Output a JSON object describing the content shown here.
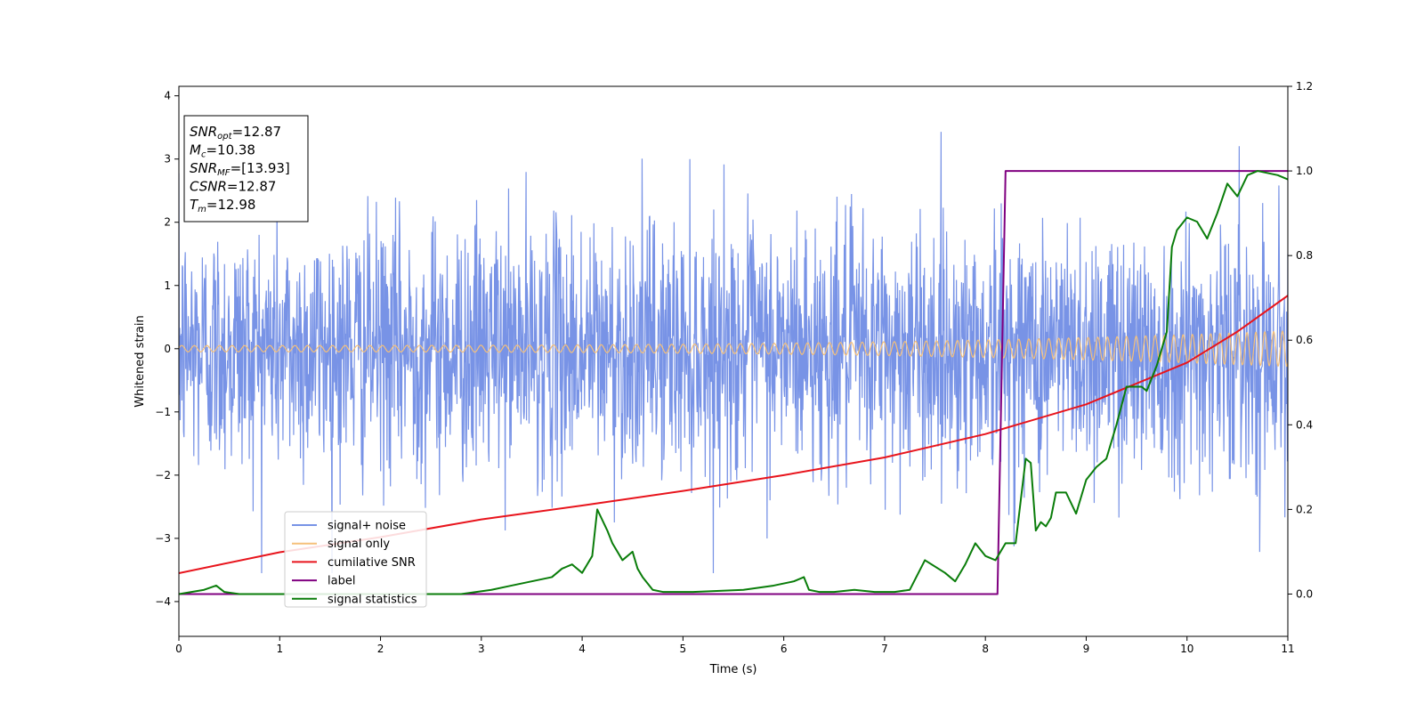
{
  "chart_data": {
    "type": "line",
    "xlabel": "Time (s)",
    "ylabel_left": "Whitened strain",
    "ylabel_right": "",
    "xlim": [
      0,
      11
    ],
    "ylim_left": [
      -4.55,
      4.15
    ],
    "ylim_right": [
      -0.1,
      1.2
    ],
    "xticks": [
      0,
      1,
      2,
      3,
      4,
      5,
      6,
      7,
      8,
      9,
      10,
      11
    ],
    "yticks_left": [
      -4,
      -3,
      -2,
      -1,
      0,
      1,
      2,
      3,
      4
    ],
    "yticks_right": [
      0.0,
      0.2,
      0.4,
      0.6,
      0.8,
      1.0,
      1.2
    ],
    "grid": false,
    "legend_position": "lower-left",
    "info_box": {
      "position": "top-left",
      "lines": [
        {
          "name": "SNR",
          "sub": "opt",
          "value": "=12.87"
        },
        {
          "name": "M",
          "sub": "c",
          "value": "=10.38"
        },
        {
          "name": "SNR",
          "sub": "MF",
          "value": "=[13.93]"
        },
        {
          "name": "CSNR",
          "sub": "",
          "value": "=12.87"
        },
        {
          "name": "T",
          "sub": "m",
          "value": "=12.98"
        }
      ]
    },
    "series": [
      {
        "name": "signal+ noise",
        "color": "#7893e6",
        "axis": "left",
        "description": "Gaussian noise, std approx 1.0, spikes to approx 3.8",
        "noise_std": 1.0
      },
      {
        "name": "signal only",
        "color": "#f5c07a",
        "axis": "left",
        "description": "chirp oscillation, amplitude rising from 0.05 to 0.28",
        "amplitude_start": 0.05,
        "amplitude_end": 0.28
      },
      {
        "name": "cumilative SNR",
        "color": "#e8141c",
        "axis": "left",
        "x": [
          0,
          1,
          2,
          3,
          4,
          5,
          6,
          7,
          8,
          9,
          10,
          10.5,
          11
        ],
        "y": [
          -3.55,
          -3.22,
          -2.98,
          -2.7,
          -2.48,
          -2.25,
          -2.0,
          -1.72,
          -1.35,
          -0.88,
          -0.22,
          0.27,
          0.84
        ]
      },
      {
        "name": "label",
        "color": "#800080",
        "axis": "right",
        "x": [
          0,
          8.12,
          8.2,
          11
        ],
        "y": [
          0.0,
          0.0,
          1.0,
          1.0
        ]
      },
      {
        "name": "signal statistics",
        "color": "#0a7d0a",
        "axis": "right",
        "x": [
          0,
          0.25,
          0.37,
          0.45,
          0.6,
          1.0,
          2.0,
          2.8,
          3.1,
          3.3,
          3.4,
          3.5,
          3.7,
          3.8,
          3.9,
          4.0,
          4.1,
          4.15,
          4.25,
          4.3,
          4.4,
          4.5,
          4.55,
          4.6,
          4.7,
          4.8,
          4.9,
          5.1,
          5.6,
          5.9,
          6.1,
          6.2,
          6.25,
          6.35,
          6.5,
          6.7,
          6.9,
          7.1,
          7.25,
          7.4,
          7.6,
          7.7,
          7.8,
          7.9,
          8.0,
          8.1,
          8.2,
          8.3,
          8.4,
          8.45,
          8.5,
          8.55,
          8.6,
          8.65,
          8.7,
          8.8,
          8.9,
          9.0,
          9.1,
          9.2,
          9.3,
          9.4,
          9.55,
          9.6,
          9.7,
          9.8,
          9.85,
          9.9,
          10.0,
          10.1,
          10.2,
          10.3,
          10.4,
          10.5,
          10.6,
          10.7,
          10.9,
          11.0
        ],
        "y": [
          0.0,
          0.01,
          0.02,
          0.005,
          0.0,
          0.0,
          0.0,
          0.0,
          0.01,
          0.02,
          0.025,
          0.03,
          0.04,
          0.06,
          0.07,
          0.05,
          0.09,
          0.2,
          0.15,
          0.12,
          0.08,
          0.1,
          0.06,
          0.04,
          0.01,
          0.005,
          0.005,
          0.005,
          0.01,
          0.02,
          0.03,
          0.04,
          0.01,
          0.005,
          0.005,
          0.01,
          0.005,
          0.005,
          0.01,
          0.08,
          0.05,
          0.03,
          0.07,
          0.12,
          0.09,
          0.08,
          0.12,
          0.12,
          0.32,
          0.31,
          0.15,
          0.17,
          0.16,
          0.18,
          0.24,
          0.24,
          0.19,
          0.27,
          0.3,
          0.32,
          0.4,
          0.49,
          0.49,
          0.48,
          0.54,
          0.62,
          0.82,
          0.86,
          0.89,
          0.88,
          0.84,
          0.9,
          0.97,
          0.94,
          0.99,
          1.0,
          0.99,
          0.98
        ]
      }
    ]
  }
}
